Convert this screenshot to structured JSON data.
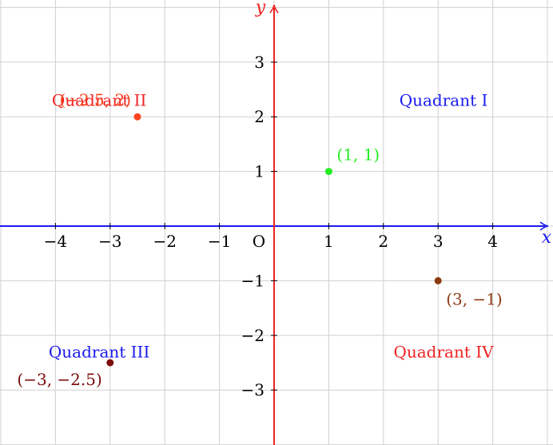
{
  "chart_data": {
    "type": "scatter",
    "xlabel": "x",
    "ylabel": "y",
    "xlim": [
      -5,
      5
    ],
    "ylim": [
      -4,
      4
    ],
    "grid": true,
    "origin_label": "O",
    "x_ticks": [
      {
        "value": -4,
        "label": "−4"
      },
      {
        "value": -3,
        "label": "−3"
      },
      {
        "value": -2,
        "label": "−2"
      },
      {
        "value": -1,
        "label": "−1"
      },
      {
        "value": 1,
        "label": "1"
      },
      {
        "value": 2,
        "label": "2"
      },
      {
        "value": 3,
        "label": "3"
      },
      {
        "value": 4,
        "label": "4"
      }
    ],
    "y_ticks": [
      {
        "value": 3,
        "label": "3"
      },
      {
        "value": 2,
        "label": "2"
      },
      {
        "value": 1,
        "label": "1"
      },
      {
        "value": -1,
        "label": "−1"
      },
      {
        "value": -2,
        "label": "−2"
      },
      {
        "value": -3,
        "label": "−3"
      }
    ],
    "points": [
      {
        "x": 1,
        "y": 1,
        "label": "(1, 1)",
        "color": "#22ee22",
        "anchor": "above-right"
      },
      {
        "x": -2.5,
        "y": 2,
        "label": "(−2.5, 2)",
        "color": "#ff4422",
        "anchor": "above-left"
      },
      {
        "x": -3,
        "y": -2.5,
        "label": "(−3, −2.5)",
        "color": "#7a0a0a",
        "anchor": "below-left"
      },
      {
        "x": 3,
        "y": -1,
        "label": "(3, −1)",
        "color": "#8b3a10",
        "anchor": "below-right"
      }
    ],
    "annotations": [
      {
        "text": "Quadrant I",
        "x": 3.1,
        "y": 2.3,
        "color": "#1a1aee"
      },
      {
        "text": "Quadrant II",
        "x": -3.2,
        "y": 2.3,
        "color": "#ee2222"
      },
      {
        "text": "Quadrant III",
        "x": -3.2,
        "y": -2.3,
        "color": "#1a1aee"
      },
      {
        "text": "Quadrant IV",
        "x": 3.1,
        "y": -2.3,
        "color": "#ee2222"
      }
    ],
    "x_axis_color": "#1a1aee",
    "y_axis_color": "#ee2222",
    "grid_color": "#d0d0d0"
  }
}
